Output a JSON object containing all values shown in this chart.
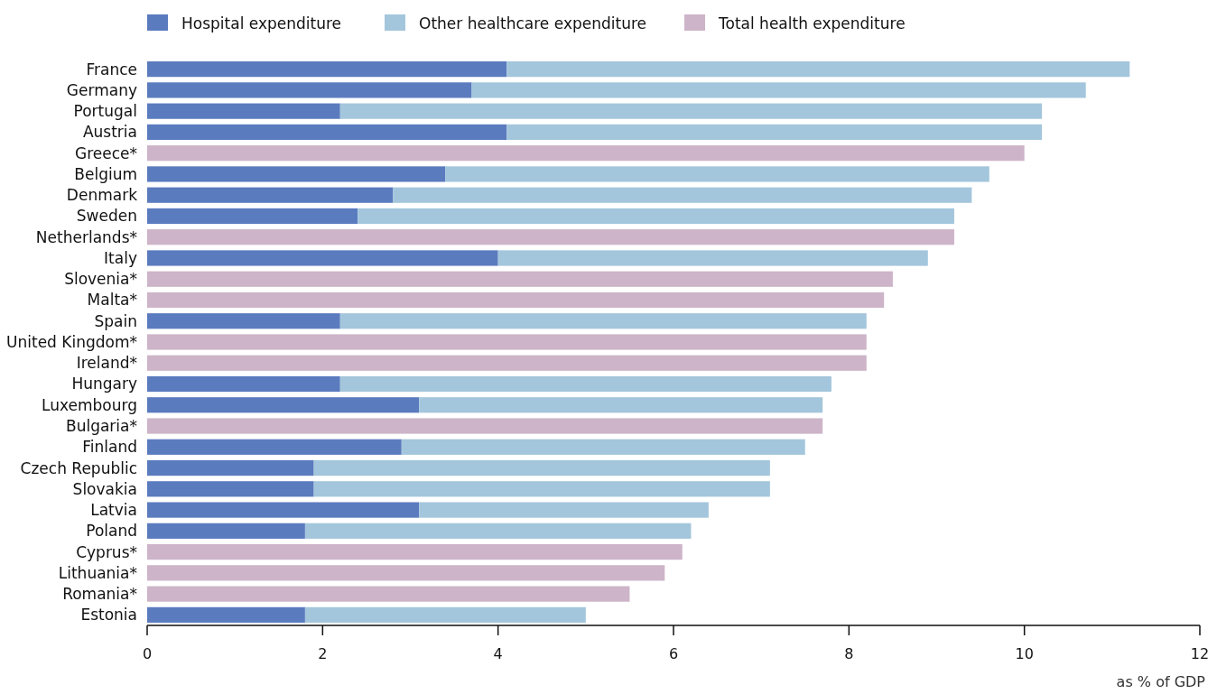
{
  "chart_data": {
    "type": "bar",
    "orientation": "horizontal",
    "stacked": true,
    "categories": [
      "France",
      "Germany",
      "Portugal",
      "Austria",
      "Greece*",
      "Belgium",
      "Denmark",
      "Sweden",
      "Netherlands*",
      "Italy",
      "Slovenia*",
      "Malta*",
      "Spain",
      "United Kingdom*",
      "Ireland*",
      "Hungary",
      "Luxembourg",
      "Bulgaria*",
      "Finland",
      "Czech Republic",
      "Slovakia",
      "Latvia",
      "Poland",
      "Cyprus*",
      "Lithuania*",
      "Romania*",
      "Estonia"
    ],
    "series": [
      {
        "name": "Hospital expenditure",
        "color": "#5b7bbf",
        "values": [
          4.1,
          3.7,
          2.2,
          4.1,
          null,
          3.4,
          2.8,
          2.4,
          null,
          4.0,
          null,
          null,
          2.2,
          null,
          null,
          2.2,
          3.1,
          null,
          2.9,
          1.9,
          1.9,
          3.1,
          1.8,
          null,
          null,
          null,
          1.8
        ]
      },
      {
        "name": "Other healthcare expenditure",
        "color": "#a3c6dc",
        "values": [
          7.1,
          7.0,
          8.0,
          6.1,
          null,
          6.2,
          6.6,
          6.8,
          null,
          4.9,
          null,
          null,
          6.0,
          null,
          null,
          5.6,
          4.6,
          null,
          4.6,
          5.2,
          5.2,
          3.3,
          4.4,
          null,
          null,
          null,
          3.2
        ]
      },
      {
        "name": "Total health expenditure",
        "color": "#cdb4c8",
        "values": [
          null,
          null,
          null,
          null,
          10.0,
          null,
          null,
          null,
          9.2,
          null,
          8.5,
          8.4,
          null,
          8.2,
          8.2,
          null,
          null,
          7.7,
          null,
          null,
          null,
          null,
          null,
          6.1,
          5.9,
          5.5,
          null
        ]
      }
    ],
    "xlim": [
      0,
      12
    ],
    "xticks": [
      0,
      2,
      4,
      6,
      8,
      10,
      12
    ],
    "xlabel": "as % of GDP",
    "grid": false,
    "legend": "top left"
  }
}
